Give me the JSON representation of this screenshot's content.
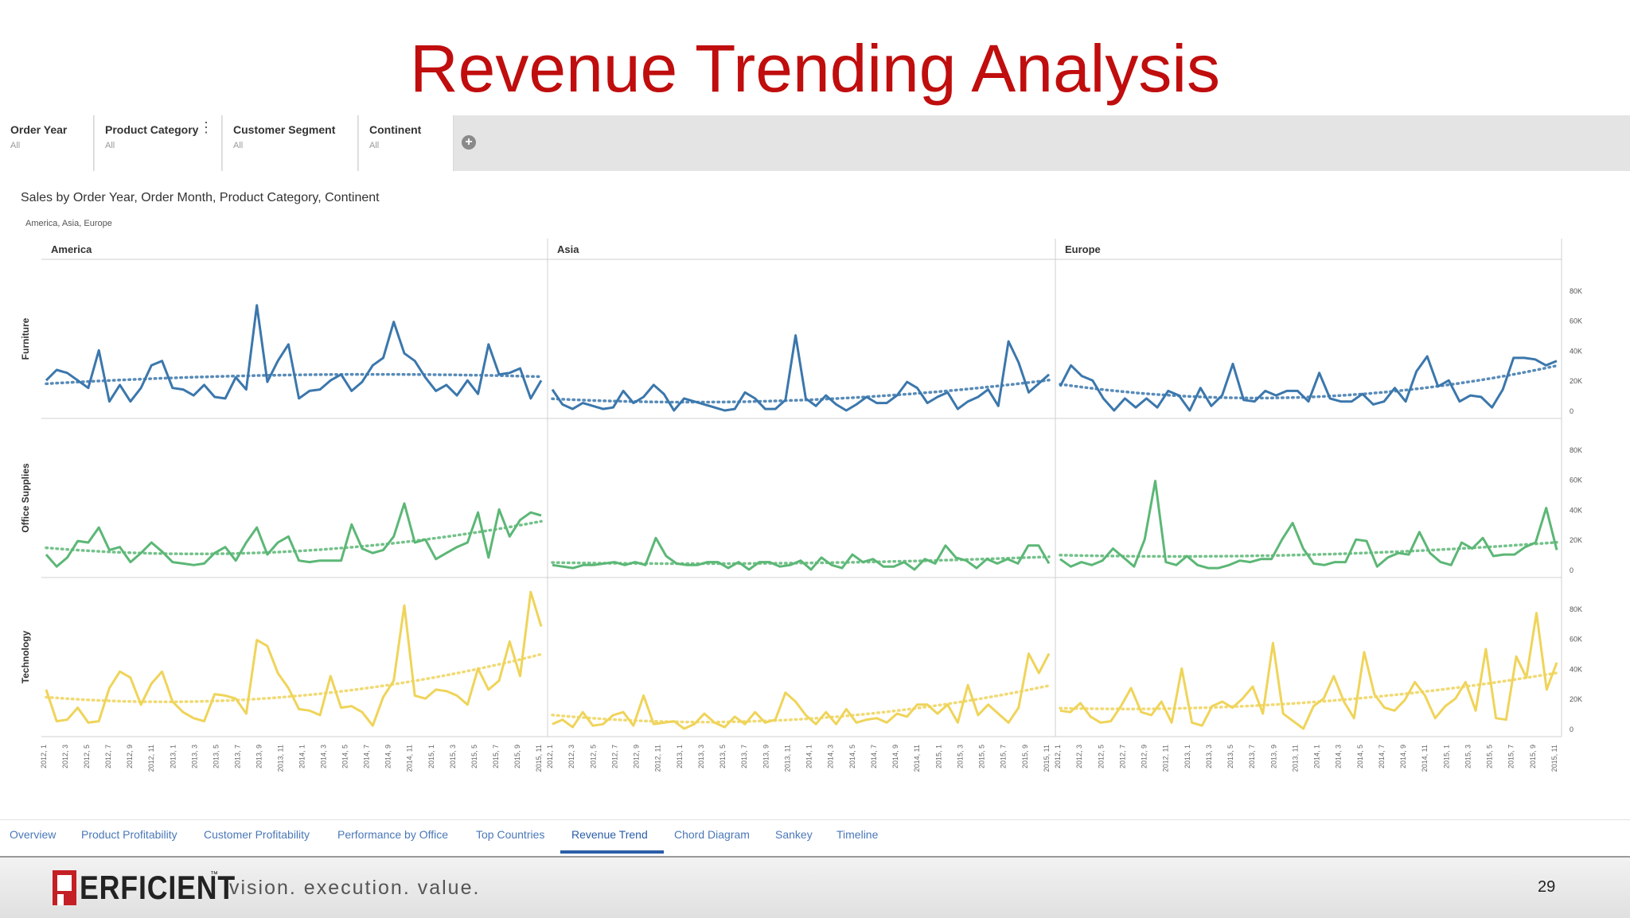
{
  "slide": {
    "title": "Revenue Trending Analysis",
    "page_number": "29"
  },
  "filters": [
    {
      "label": "Order Year",
      "value": "All"
    },
    {
      "label": "Product Category",
      "value": "All"
    },
    {
      "label": "Customer Segment",
      "value": "All"
    },
    {
      "label": "Continent",
      "value": "All"
    }
  ],
  "view": {
    "title": "Sales by Order Year, Order Month, Product Category, Continent",
    "subtitle": "America, Asia, Europe"
  },
  "tabs": [
    "Overview",
    "Product Profitability",
    "Customer Profitability",
    "Performance by Office",
    "Top Countries",
    "Revenue Trend",
    "Chord Diagram",
    "Sankey",
    "Timeline"
  ],
  "active_tab": "Revenue Trend",
  "footer": {
    "brand": "ERFICIENT",
    "tagline": "vision.  execution.  value."
  },
  "colors": {
    "title": "#c00d0d",
    "furniture": "#3b77ac",
    "office_supplies": "#5cb776",
    "technology": "#efd45a",
    "tab_active": "#2a5ea8"
  },
  "icons": [
    "kebab-icon",
    "add-filter-icon",
    "perficient-logo-icon"
  ],
  "chart_data": {
    "type": "line",
    "columns": [
      "America",
      "Asia",
      "Europe"
    ],
    "rows": [
      "Furniture",
      "Office Supplies",
      "Technology"
    ],
    "x_tick_labels": [
      "2012, 1",
      "2012, 3",
      "2012, 5",
      "2012, 7",
      "2012, 9",
      "2012, 11",
      "2013, 1",
      "2013, 3",
      "2013, 5",
      "2013, 7",
      "2013, 9",
      "2013, 11",
      "2014, 1",
      "2014, 3",
      "2014, 5",
      "2014, 7",
      "2014, 9",
      "2014, 11",
      "2015, 1",
      "2015, 3",
      "2015, 5",
      "2015, 7",
      "2015, 9",
      "2015, 11"
    ],
    "y_tick_labels": [
      "0",
      "20K",
      "40K",
      "60K",
      "80K"
    ],
    "ylim": [
      0,
      90000
    ],
    "trend_line": "dotted",
    "series": [
      {
        "row": "Furniture",
        "column": "America",
        "values": [
          20000,
          27000,
          25000,
          20000,
          15000,
          40000,
          6000,
          17000,
          6000,
          15000,
          30000,
          33000,
          15000,
          14000,
          10000,
          17000,
          9000,
          8000,
          22000,
          14000,
          70000,
          19000,
          33000,
          44000,
          8000,
          13000,
          14000,
          20000,
          24000,
          13000,
          19000,
          30000,
          35000,
          59000,
          38000,
          33000,
          22000,
          13000,
          17000,
          10000,
          20000,
          11000,
          44000,
          24000,
          25000,
          28000,
          8000,
          20000
        ]
      },
      {
        "row": "Furniture",
        "column": "Asia",
        "values": [
          14000,
          4000,
          1000,
          5000,
          3000,
          1000,
          2000,
          13000,
          5000,
          9000,
          17000,
          11000,
          0,
          8000,
          6000,
          4000,
          2000,
          0,
          1000,
          12000,
          8000,
          1000,
          1000,
          7000,
          50000,
          8000,
          3000,
          10000,
          4000,
          0,
          4000,
          9000,
          5000,
          5000,
          10000,
          19000,
          15000,
          5000,
          9000,
          12000,
          1000,
          6000,
          9000,
          14000,
          3000,
          46000,
          32000,
          12000,
          18000,
          24000
        ]
      },
      {
        "row": "Furniture",
        "column": "Europe",
        "values": [
          16000,
          30000,
          23000,
          20000,
          8000,
          0,
          8000,
          2000,
          8000,
          2000,
          13000,
          10000,
          0,
          15000,
          3000,
          10000,
          31000,
          7000,
          6000,
          13000,
          10000,
          13000,
          13000,
          6000,
          25000,
          8000,
          6000,
          6000,
          11000,
          4000,
          6000,
          15000,
          6000,
          26000,
          36000,
          16000,
          20000,
          6000,
          10000,
          9000,
          2000,
          14000,
          35000,
          35000,
          34000,
          30000,
          33000
        ]
      },
      {
        "row": "Office Supplies",
        "column": "America",
        "values": [
          10000,
          2000,
          8000,
          19000,
          18000,
          28000,
          13000,
          15000,
          5000,
          11000,
          18000,
          12000,
          5000,
          4000,
          3000,
          4000,
          11000,
          15000,
          6000,
          18000,
          28000,
          10000,
          18000,
          22000,
          6000,
          5000,
          6000,
          6000,
          6000,
          30000,
          14000,
          11000,
          13000,
          22000,
          44000,
          18000,
          20000,
          7000,
          11000,
          15000,
          18000,
          38000,
          8000,
          40000,
          22000,
          33000,
          38000,
          36000
        ]
      },
      {
        "row": "Office Supplies",
        "column": "Asia",
        "values": [
          3000,
          2000,
          1000,
          3000,
          3000,
          4000,
          5000,
          3000,
          5000,
          3000,
          21000,
          9000,
          4000,
          3000,
          3000,
          5000,
          5000,
          1000,
          5000,
          0,
          5000,
          5000,
          2000,
          3000,
          6000,
          0,
          8000,
          3000,
          1000,
          10000,
          5000,
          7000,
          2000,
          2000,
          5000,
          0,
          7000,
          4000,
          16000,
          8000,
          6000,
          1000,
          7000,
          4000,
          7000,
          4000,
          16000,
          16000,
          4000
        ]
      },
      {
        "row": "Office Supplies",
        "column": "Europe",
        "values": [
          7000,
          2000,
          5000,
          3000,
          6000,
          14000,
          8000,
          2000,
          20000,
          59000,
          5000,
          3000,
          9000,
          3000,
          1000,
          1000,
          3000,
          6000,
          5000,
          7000,
          7000,
          20000,
          31000,
          14000,
          4000,
          3000,
          5000,
          5000,
          20000,
          19000,
          2000,
          8000,
          11000,
          10000,
          25000,
          11000,
          5000,
          3000,
          18000,
          14000,
          21000,
          9000,
          10000,
          10000,
          15000,
          18000,
          41000,
          13000
        ]
      },
      {
        "row": "Technology",
        "column": "America",
        "values": [
          26000,
          5000,
          6000,
          14000,
          4000,
          5000,
          27000,
          38000,
          34000,
          16000,
          30000,
          38000,
          18000,
          11000,
          7000,
          5000,
          23000,
          22000,
          20000,
          10000,
          59000,
          55000,
          37000,
          27000,
          13000,
          12000,
          9000,
          35000,
          14000,
          15000,
          11000,
          2000,
          21000,
          32000,
          82000,
          22000,
          20000,
          26000,
          25000,
          22000,
          16000,
          40000,
          26000,
          32000,
          58000,
          35000,
          91000,
          68000
        ]
      },
      {
        "row": "Technology",
        "column": "Asia",
        "values": [
          3000,
          6000,
          1000,
          11000,
          2000,
          3000,
          9000,
          11000,
          2000,
          22000,
          3000,
          4000,
          5000,
          0,
          3000,
          10000,
          4000,
          1000,
          8000,
          3000,
          11000,
          4000,
          6000,
          24000,
          18000,
          9000,
          3000,
          11000,
          3000,
          13000,
          4000,
          6000,
          7000,
          4000,
          10000,
          8000,
          16000,
          16000,
          10000,
          16000,
          4000,
          29000,
          9000,
          16000,
          10000,
          4000,
          14000,
          50000,
          37000,
          50000
        ]
      },
      {
        "row": "Technology",
        "column": "Europe",
        "values": [
          12000,
          11000,
          17000,
          8000,
          4000,
          5000,
          15000,
          27000,
          11000,
          9000,
          18000,
          4000,
          40000,
          4000,
          2000,
          15000,
          18000,
          14000,
          20000,
          28000,
          10000,
          57000,
          10000,
          5000,
          0,
          15000,
          20000,
          35000,
          18000,
          7000,
          51000,
          23000,
          14000,
          12000,
          19000,
          31000,
          22000,
          7000,
          15000,
          20000,
          31000,
          12000,
          53000,
          7000,
          6000,
          48000,
          34000,
          77000,
          26000,
          44000
        ]
      }
    ]
  }
}
